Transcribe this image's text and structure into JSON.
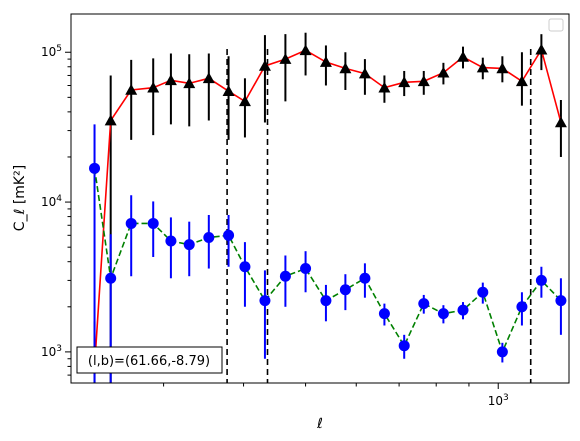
{
  "chart_data": {
    "type": "line",
    "xlabel": "ℓ",
    "ylabel": "C_ℓ  [mK²]",
    "xscale": "log",
    "yscale": "log",
    "xlim": [
      215,
      1290
    ],
    "ylim": [
      620,
      180000
    ],
    "x_tick_labels": [
      "10^3"
    ],
    "y_tick_labels": [
      "10^3",
      "10^4",
      "10^5"
    ],
    "annotation": "(l,b)=(61.66,-8.79)",
    "legend": {
      "placement": "upper right",
      "entries": []
    },
    "vlines_x": [
      377,
      436,
      1124
    ],
    "series": [
      {
        "style": "red solid line, black triangle markers",
        "color": "#ff0000",
        "marker_color": "#000000",
        "points": [
          {
            "x": 234,
            "y": 800,
            "err_lo": 800,
            "err_hi": 800
          },
          {
            "x": 248,
            "y": 35000,
            "err_lo": 35000,
            "err_hi": 35000
          },
          {
            "x": 267,
            "y": 56000,
            "err_lo": 30000,
            "err_hi": 33000
          },
          {
            "x": 289,
            "y": 58000,
            "err_lo": 30000,
            "err_hi": 33000
          },
          {
            "x": 308,
            "y": 65000,
            "err_lo": 32000,
            "err_hi": 33000
          },
          {
            "x": 329,
            "y": 62000,
            "err_lo": 30000,
            "err_hi": 35000
          },
          {
            "x": 353,
            "y": 67000,
            "err_lo": 32000,
            "err_hi": 31000
          },
          {
            "x": 379,
            "y": 55000,
            "err_lo": 29000,
            "err_hi": 39000
          },
          {
            "x": 402,
            "y": 47000,
            "err_lo": 20000,
            "err_hi": 20000
          },
          {
            "x": 432,
            "y": 81000,
            "err_lo": 47000,
            "err_hi": 49000
          },
          {
            "x": 465,
            "y": 90000,
            "err_lo": 43000,
            "err_hi": 42000
          },
          {
            "x": 500,
            "y": 103000,
            "err_lo": 33000,
            "err_hi": 32000
          },
          {
            "x": 538,
            "y": 86000,
            "err_lo": 26000,
            "err_hi": 25000
          },
          {
            "x": 577,
            "y": 78000,
            "err_lo": 22000,
            "err_hi": 22000
          },
          {
            "x": 619,
            "y": 72000,
            "err_lo": 20000,
            "err_hi": 18000
          },
          {
            "x": 664,
            "y": 58000,
            "err_lo": 12000,
            "err_hi": 12000
          },
          {
            "x": 713,
            "y": 63000,
            "err_lo": 12000,
            "err_hi": 12000
          },
          {
            "x": 765,
            "y": 64000,
            "err_lo": 12000,
            "err_hi": 11000
          },
          {
            "x": 821,
            "y": 73000,
            "err_lo": 12000,
            "err_hi": 12000
          },
          {
            "x": 881,
            "y": 93000,
            "err_lo": 15000,
            "err_hi": 16000
          },
          {
            "x": 946,
            "y": 79000,
            "err_lo": 13000,
            "err_hi": 13000
          },
          {
            "x": 1015,
            "y": 78000,
            "err_lo": 15000,
            "err_hi": 16000
          },
          {
            "x": 1089,
            "y": 64000,
            "err_lo": 20000,
            "err_hi": 36000
          },
          {
            "x": 1168,
            "y": 104000,
            "err_lo": 28000,
            "err_hi": 28000
          },
          {
            "x": 1253,
            "y": 34000,
            "err_lo": 14000,
            "err_hi": 14000
          }
        ]
      },
      {
        "style": "green dashed line, blue circle markers",
        "color": "#008000",
        "marker_color": "#0000ff",
        "points": [
          {
            "x": 234,
            "y": 16800,
            "err_lo": 16180,
            "err_hi": 16200
          },
          {
            "x": 248,
            "y": 3100,
            "err_lo": 2480,
            "err_hi": 3000
          },
          {
            "x": 267,
            "y": 7200,
            "err_lo": 4000,
            "err_hi": 3900
          },
          {
            "x": 289,
            "y": 7200,
            "err_lo": 2900,
            "err_hi": 2900
          },
          {
            "x": 308,
            "y": 5500,
            "err_lo": 2400,
            "err_hi": 2400
          },
          {
            "x": 329,
            "y": 5200,
            "err_lo": 2000,
            "err_hi": 2200
          },
          {
            "x": 353,
            "y": 5800,
            "err_lo": 2200,
            "err_hi": 2400
          },
          {
            "x": 379,
            "y": 6000,
            "err_lo": 2300,
            "err_hi": 2200
          },
          {
            "x": 402,
            "y": 3700,
            "err_lo": 1700,
            "err_hi": 1700
          },
          {
            "x": 432,
            "y": 2200,
            "err_lo": 1300,
            "err_hi": 1300
          },
          {
            "x": 465,
            "y": 3200,
            "err_lo": 1200,
            "err_hi": 1200
          },
          {
            "x": 500,
            "y": 3600,
            "err_lo": 1100,
            "err_hi": 1100
          },
          {
            "x": 538,
            "y": 2200,
            "err_lo": 600,
            "err_hi": 600
          },
          {
            "x": 577,
            "y": 2600,
            "err_lo": 700,
            "err_hi": 700
          },
          {
            "x": 619,
            "y": 3100,
            "err_lo": 800,
            "err_hi": 800
          },
          {
            "x": 664,
            "y": 1800,
            "err_lo": 300,
            "err_hi": 300
          },
          {
            "x": 713,
            "y": 1100,
            "err_lo": 200,
            "err_hi": 200
          },
          {
            "x": 765,
            "y": 2100,
            "err_lo": 300,
            "err_hi": 300
          },
          {
            "x": 821,
            "y": 1800,
            "err_lo": 250,
            "err_hi": 250
          },
          {
            "x": 881,
            "y": 1900,
            "err_lo": 250,
            "err_hi": 250
          },
          {
            "x": 946,
            "y": 2500,
            "err_lo": 400,
            "err_hi": 400
          },
          {
            "x": 1015,
            "y": 1000,
            "err_lo": 150,
            "err_hi": 150
          },
          {
            "x": 1089,
            "y": 2000,
            "err_lo": 500,
            "err_hi": 500
          },
          {
            "x": 1168,
            "y": 3000,
            "err_lo": 700,
            "err_hi": 700
          },
          {
            "x": 1253,
            "y": 2200,
            "err_lo": 900,
            "err_hi": 900
          }
        ]
      }
    ]
  }
}
